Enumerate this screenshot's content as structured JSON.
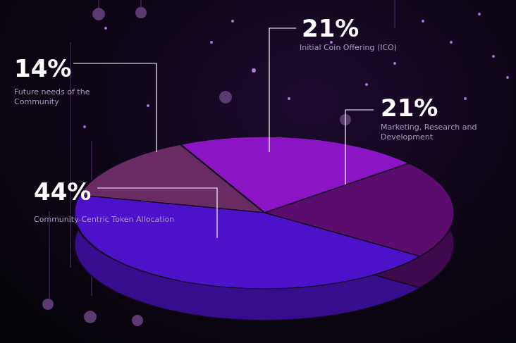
{
  "chart_data": {
    "type": "pie",
    "categories": [
      "Marketing, Research and Development",
      "Initial Coin Offering (ICO)",
      "Future needs of the Community",
      "Community-Centric Token Allocation"
    ],
    "values": [
      21,
      21,
      14,
      44
    ],
    "value_labels": [
      "21%",
      "21%",
      "14%",
      "44%"
    ],
    "colors": [
      "#5c0c6e",
      "#8b14c4",
      "#6a2b63",
      "#4b12c9"
    ],
    "data_labels": true
  }
}
